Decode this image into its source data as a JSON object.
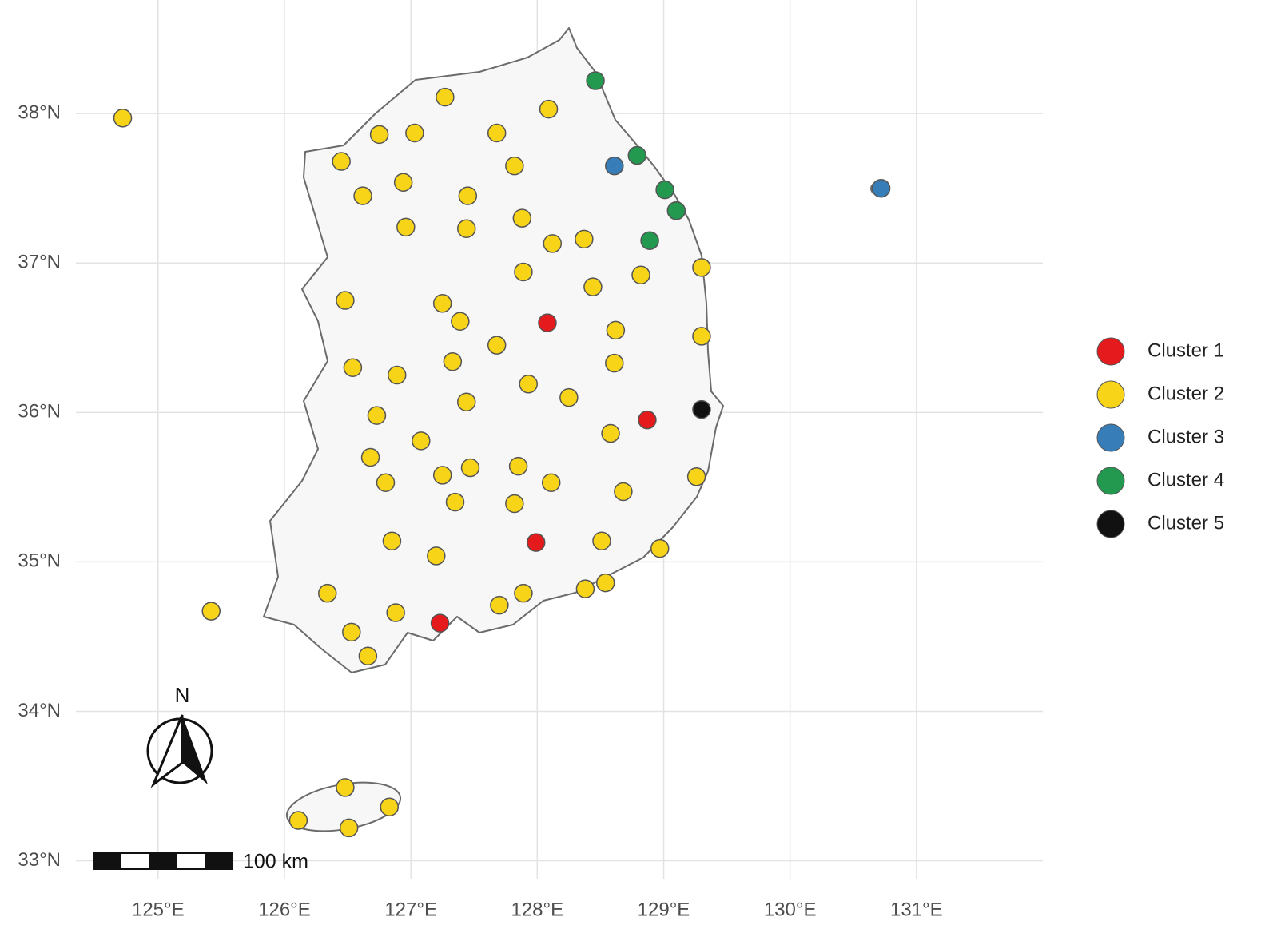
{
  "chart_data": {
    "type": "map",
    "xlim": [
      124.35,
      132.0
    ],
    "ylim": [
      32.88,
      38.76
    ],
    "xticks": [
      {
        "value": 125,
        "label": "125°E"
      },
      {
        "value": 126,
        "label": "126°E"
      },
      {
        "value": 127,
        "label": "127°E"
      },
      {
        "value": 128,
        "label": "128°E"
      },
      {
        "value": 129,
        "label": "129°E"
      },
      {
        "value": 130,
        "label": "130°E"
      },
      {
        "value": 131,
        "label": "131°E"
      }
    ],
    "yticks": [
      {
        "value": 33,
        "label": "33°N"
      },
      {
        "value": 34,
        "label": "34°N"
      },
      {
        "value": 35,
        "label": "35°N"
      },
      {
        "value": 36,
        "label": "36°N"
      },
      {
        "value": 37,
        "label": "37°N"
      },
      {
        "value": 38,
        "label": "38°N"
      }
    ],
    "grid": true,
    "legend": "right",
    "north_label": "N",
    "scale_bar_label": "100 km",
    "series": [
      {
        "name": "Cluster 1",
        "color": "#e41a1c",
        "x": [
          128.08,
          128.87,
          127.99,
          127.23
        ],
        "values": [
          36.6,
          35.95,
          35.13,
          34.59
        ]
      },
      {
        "name": "Cluster 2",
        "color": "#f7d417",
        "x": [
          124.72,
          127.27,
          128.09,
          126.75,
          127.03,
          127.68,
          126.45,
          127.82,
          126.94,
          126.62,
          127.45,
          127.88,
          126.96,
          127.44,
          128.12,
          128.37,
          129.3,
          127.89,
          128.82,
          126.48,
          127.25,
          128.44,
          127.39,
          128.62,
          129.3,
          127.68,
          126.54,
          127.33,
          128.61,
          126.89,
          127.93,
          127.44,
          128.25,
          126.73,
          127.08,
          128.58,
          126.68,
          127.47,
          127.85,
          127.25,
          126.8,
          128.11,
          128.68,
          129.26,
          127.35,
          127.82,
          126.85,
          127.2,
          128.51,
          128.97,
          126.34,
          127.89,
          128.38,
          128.54,
          127.7,
          126.88,
          125.42,
          126.53,
          126.66,
          126.48,
          126.83,
          126.11,
          126.51
        ],
        "values": [
          37.97,
          38.11,
          38.03,
          37.86,
          37.87,
          37.87,
          37.68,
          37.65,
          37.54,
          37.45,
          37.45,
          37.3,
          37.24,
          37.23,
          37.13,
          37.16,
          36.97,
          36.94,
          36.92,
          36.75,
          36.73,
          36.84,
          36.61,
          36.55,
          36.51,
          36.45,
          36.3,
          36.34,
          36.33,
          36.25,
          36.19,
          36.07,
          36.1,
          35.98,
          35.81,
          35.86,
          35.7,
          35.63,
          35.64,
          35.58,
          35.53,
          35.53,
          35.47,
          35.57,
          35.4,
          35.39,
          35.14,
          35.04,
          35.14,
          35.09,
          34.79,
          34.79,
          34.82,
          34.86,
          34.71,
          34.66,
          34.67,
          34.53,
          34.37,
          33.49,
          33.36,
          33.27,
          33.22
        ]
      },
      {
        "name": "Cluster 3",
        "color": "#377eb8",
        "x": [
          128.61,
          130.72
        ],
        "values": [
          37.65,
          37.5
        ]
      },
      {
        "name": "Cluster 4",
        "color": "#23984f",
        "x": [
          128.46,
          128.79,
          129.01,
          129.1,
          128.89
        ],
        "values": [
          38.22,
          37.72,
          37.49,
          37.35,
          37.15
        ]
      },
      {
        "name": "Cluster 5",
        "color": "#111111",
        "x": [
          129.3
        ],
        "values": [
          36.02
        ]
      }
    ]
  }
}
